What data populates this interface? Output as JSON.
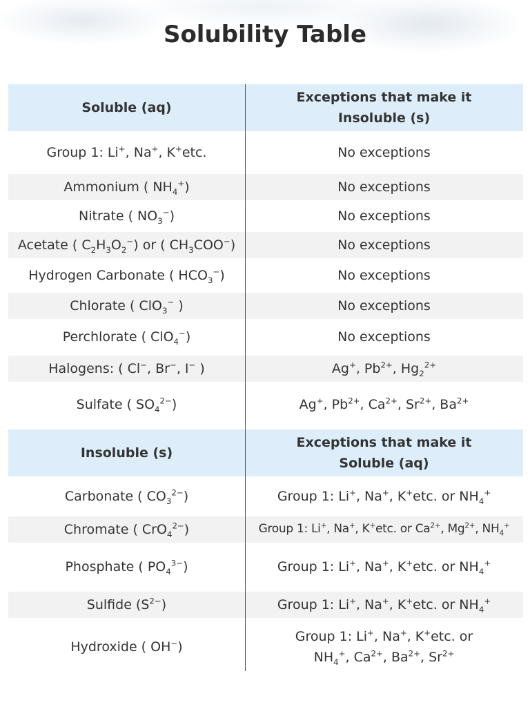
{
  "title": "Solubility Table",
  "sections": [
    {
      "header": [
        [
          [
            "Soluble (aq)"
          ]
        ],
        [
          [
            "Exceptions that make it"
          ],
          [
            "Insoluble (s)"
          ]
        ]
      ],
      "rows": [
        [
          [
            [
              "Group 1: Li",
              {
                "sup": "+"
              },
              ", Na",
              {
                "sup": "+"
              },
              ", K",
              {
                "sup": "+"
              },
              "etc."
            ]
          ],
          [
            [
              "No exceptions"
            ]
          ]
        ],
        [
          [
            [
              "Ammonium ( NH",
              {
                "sub": "4"
              },
              {
                "sup": "+"
              },
              ")"
            ]
          ],
          [
            [
              "No exceptions"
            ]
          ]
        ],
        [
          [
            [
              "Nitrate ( NO",
              {
                "sub": "3"
              },
              {
                "sup": "−"
              },
              ")"
            ]
          ],
          [
            [
              "No exceptions"
            ]
          ]
        ],
        [
          [
            [
              "Acetate ( C",
              {
                "sub": "2"
              },
              "H",
              {
                "sub": "3"
              },
              "O",
              {
                "sub": "2"
              },
              {
                "sup": "−"
              },
              ") or ( CH",
              {
                "sub": "3"
              },
              "COO",
              {
                "sup": "−"
              },
              ")"
            ]
          ],
          [
            [
              "No exceptions"
            ]
          ]
        ],
        [
          [
            [
              "Hydrogen Carbonate ( HCO",
              {
                "sub": "3"
              },
              {
                "sup": "−"
              },
              ")"
            ]
          ],
          [
            [
              "No exceptions"
            ]
          ]
        ],
        [
          [
            [
              "Chlorate ( ClO",
              {
                "sub": "3"
              },
              {
                "sup": "−"
              },
              " )"
            ]
          ],
          [
            [
              "No exceptions"
            ]
          ]
        ],
        [
          [
            [
              "Perchlorate ( ClO",
              {
                "sub": "4"
              },
              {
                "sup": "−"
              },
              ")"
            ]
          ],
          [
            [
              "No exceptions"
            ]
          ]
        ],
        [
          [
            [
              "Halogens: ( Cl",
              {
                "sup": "−"
              },
              ", Br",
              {
                "sup": "−"
              },
              ", I",
              {
                "sup": "−"
              },
              " )"
            ]
          ],
          [
            [
              "Ag",
              {
                "sup": "+"
              },
              ", Pb",
              {
                "sup": "2+"
              },
              ", Hg",
              {
                "sub": "2"
              },
              {
                "sup": "2+"
              }
            ]
          ]
        ],
        [
          [
            [
              "Sulfate ( SO",
              {
                "sub": "4"
              },
              {
                "sup": "2−"
              },
              ")"
            ]
          ],
          [
            [
              "Ag",
              {
                "sup": "+"
              },
              ", Pb",
              {
                "sup": "2+"
              },
              ", Ca",
              {
                "sup": "2+"
              },
              ", Sr",
              {
                "sup": "2+"
              },
              ", Ba",
              {
                "sup": "2+"
              }
            ]
          ]
        ]
      ]
    },
    {
      "header": [
        [
          [
            "Insoluble (s)"
          ]
        ],
        [
          [
            "Exceptions that make it"
          ],
          [
            "Soluble (aq)"
          ]
        ]
      ],
      "rows": [
        [
          [
            [
              "Carbonate ( CO",
              {
                "sub": "3"
              },
              {
                "sup": "2−"
              },
              ")"
            ]
          ],
          [
            [
              "Group 1: Li",
              {
                "sup": "+"
              },
              ", Na",
              {
                "sup": "+"
              },
              ", K",
              {
                "sup": "+"
              },
              "etc.  or NH",
              {
                "sub": "4"
              },
              {
                "sup": "+"
              }
            ]
          ]
        ],
        [
          [
            [
              "Chromate ( CrO",
              {
                "sub": "4"
              },
              {
                "sup": "2−"
              },
              ")"
            ]
          ],
          [
            [
              "Group 1: Li",
              {
                "sup": "+"
              },
              ", Na",
              {
                "sup": "+"
              },
              ", K",
              {
                "sup": "+"
              },
              "etc. or Ca",
              {
                "sup": "2+"
              },
              ", Mg",
              {
                "sup": "2+"
              },
              ", NH",
              {
                "sub": "4"
              },
              {
                "sup": "+"
              }
            ]
          ]
        ],
        [
          [
            [
              "Phosphate ( PO",
              {
                "sub": "4"
              },
              {
                "sup": "3−"
              },
              ")"
            ]
          ],
          [
            [
              "Group 1: Li",
              {
                "sup": "+"
              },
              ", Na",
              {
                "sup": "+"
              },
              ", K",
              {
                "sup": "+"
              },
              "etc. or  NH",
              {
                "sub": "4"
              },
              {
                "sup": "+"
              }
            ]
          ]
        ],
        [
          [
            [
              "Sulfide (S",
              {
                "sup": "2−"
              },
              ")"
            ]
          ],
          [
            [
              "Group 1: Li",
              {
                "sup": "+"
              },
              ", Na",
              {
                "sup": "+"
              },
              ", K",
              {
                "sup": "+"
              },
              "etc. or  NH",
              {
                "sub": "4"
              },
              {
                "sup": "+"
              }
            ]
          ]
        ],
        [
          [
            [
              "Hydroxide ( OH",
              {
                "sup": "−"
              },
              ")"
            ]
          ],
          [
            [
              "Group 1: Li",
              {
                "sup": "+"
              },
              ", Na",
              {
                "sup": "+"
              },
              ", K",
              {
                "sup": "+"
              },
              "etc. or"
            ],
            [
              "NH",
              {
                "sub": "4"
              },
              {
                "sup": "+"
              },
              ", Ca",
              {
                "sup": "2+"
              },
              ", Ba",
              {
                "sup": "2+"
              },
              ", Sr",
              {
                "sup": "2+"
              }
            ]
          ]
        ]
      ]
    }
  ]
}
